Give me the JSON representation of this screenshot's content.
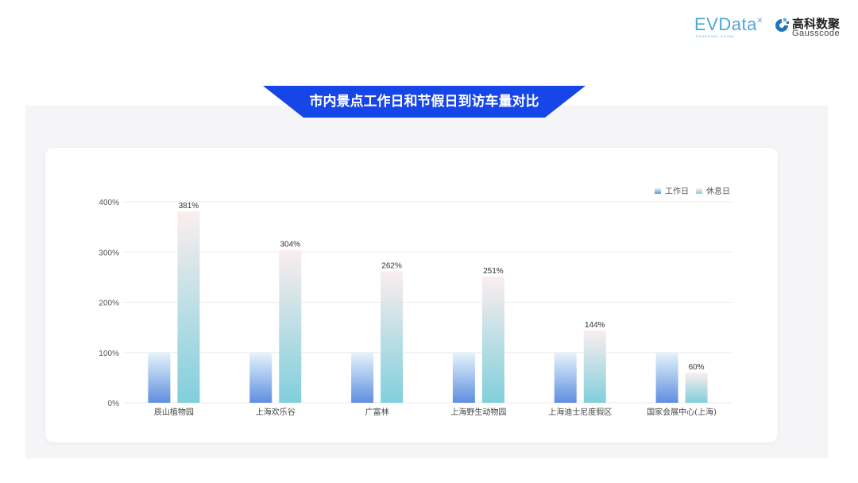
{
  "title": "市内景点工作日和节假日到访车量对比",
  "logos": {
    "evdata": "EVData",
    "evdata_sub": "SHANGHAI CHINA",
    "gauss_cn": "高科数聚",
    "gauss_en": "Gausscode"
  },
  "colors": {
    "banner": "#1746e8",
    "workday_top": "#e6f4fb",
    "workday_bottom": "#5f8fe0",
    "rest_top": "#fbeeee",
    "rest_bottom": "#80cfdc"
  },
  "chart_data": {
    "type": "bar",
    "title": "",
    "categories": [
      "辰山植物园",
      "上海欢乐谷",
      "广富林",
      "上海野生动物园",
      "上海迪士尼度假区",
      "国家会展中心(上海)"
    ],
    "series": [
      {
        "name": "工作日",
        "values": [
          100,
          100,
          100,
          100,
          100,
          100
        ],
        "labels": [
          "",
          "",
          "",
          "",
          "",
          ""
        ]
      },
      {
        "name": "休息日",
        "values": [
          381,
          304,
          262,
          251,
          144,
          60
        ],
        "labels": [
          "381%",
          "304%",
          "262%",
          "251%",
          "144%",
          "60%"
        ]
      }
    ],
    "ylim": [
      0,
      400
    ],
    "yticks": [
      "0%",
      "100%",
      "200%",
      "300%",
      "400%"
    ],
    "grid": true,
    "legend": "top-right"
  }
}
